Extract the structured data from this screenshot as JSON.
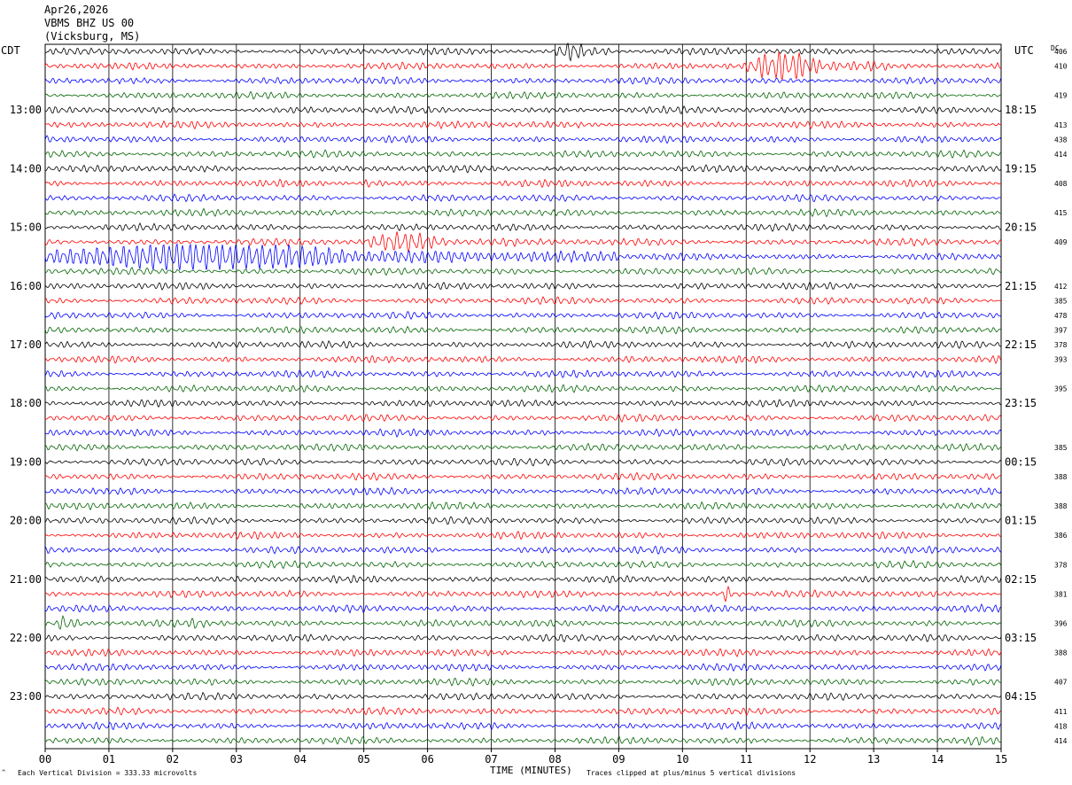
{
  "header": {
    "date": "Apr26,2026",
    "station": "VBMS BHZ US 00",
    "location": "(Vicksburg, MS)"
  },
  "left_zone": "CDT",
  "right_zone": "UTC",
  "dc_label": "DC",
  "footer": {
    "scale_note": "Each Vertical Division =  333.33 microvolts",
    "xlabel": "TIME (MINUTES)",
    "clip_note": "Traces clipped at plus/minus 5 vertical divisions"
  },
  "colors": {
    "trace_cycle": [
      "#000000",
      "#ff0000",
      "#0000ff",
      "#006400"
    ],
    "grid": "#000000"
  },
  "chart_data": {
    "type": "line",
    "title": "VBMS BHZ US 00 (Vicksburg, MS) Apr26,2026",
    "xlabel": "TIME (MINUTES)",
    "xlim": [
      0,
      15
    ],
    "x_ticks": [
      "00",
      "01",
      "02",
      "03",
      "04",
      "05",
      "06",
      "07",
      "08",
      "09",
      "10",
      "11",
      "12",
      "13",
      "14",
      "15"
    ],
    "left_time_labels": [
      "13:00",
      "14:00",
      "15:00",
      "16:00",
      "17:00",
      "18:00",
      "19:00",
      "20:00",
      "21:00",
      "22:00",
      "23:00"
    ],
    "right_time_labels": [
      "18:15",
      "19:15",
      "20:15",
      "21:15",
      "22:15",
      "23:15",
      "00:15",
      "01:15",
      "02:15",
      "03:15",
      "04:15"
    ],
    "trace_count": 48,
    "dc_offsets": [
      "406",
      "410",
      "",
      "419",
      "",
      "413",
      "438",
      "414",
      "",
      "408",
      "",
      "415",
      "",
      "409",
      "",
      "",
      "412",
      "385",
      "478",
      "397",
      "378",
      "393",
      "",
      "395",
      "",
      "",
      "",
      "385",
      "",
      "388",
      "",
      "388",
      "",
      "386",
      "",
      "378",
      "",
      "381",
      "",
      "396",
      "",
      "388",
      "",
      "407",
      "",
      "411",
      "418",
      "414"
    ],
    "events": [
      {
        "trace": 0,
        "from_min": 8.0,
        "to_min": 8.9,
        "amp": "medium"
      },
      {
        "trace": 1,
        "from_min": 11.0,
        "to_min": 13.2,
        "amp": "large"
      },
      {
        "trace": 9,
        "from_min": 5.0,
        "to_min": 5.3,
        "amp": "small"
      },
      {
        "trace": 13,
        "from_min": 5.0,
        "to_min": 7.4,
        "amp": "medium"
      },
      {
        "trace": 14,
        "from_min": 0.0,
        "to_min": 9.0,
        "amp": "large"
      },
      {
        "trace": 37,
        "from_min": 10.6,
        "to_min": 10.9,
        "amp": "medium"
      },
      {
        "trace": 39,
        "from_min": 0.2,
        "to_min": 0.6,
        "amp": "medium"
      },
      {
        "trace": 39,
        "from_min": 2.3,
        "to_min": 2.5,
        "amp": "small"
      },
      {
        "trace": 47,
        "from_min": 14.5,
        "to_min": 14.7,
        "amp": "small"
      }
    ]
  }
}
